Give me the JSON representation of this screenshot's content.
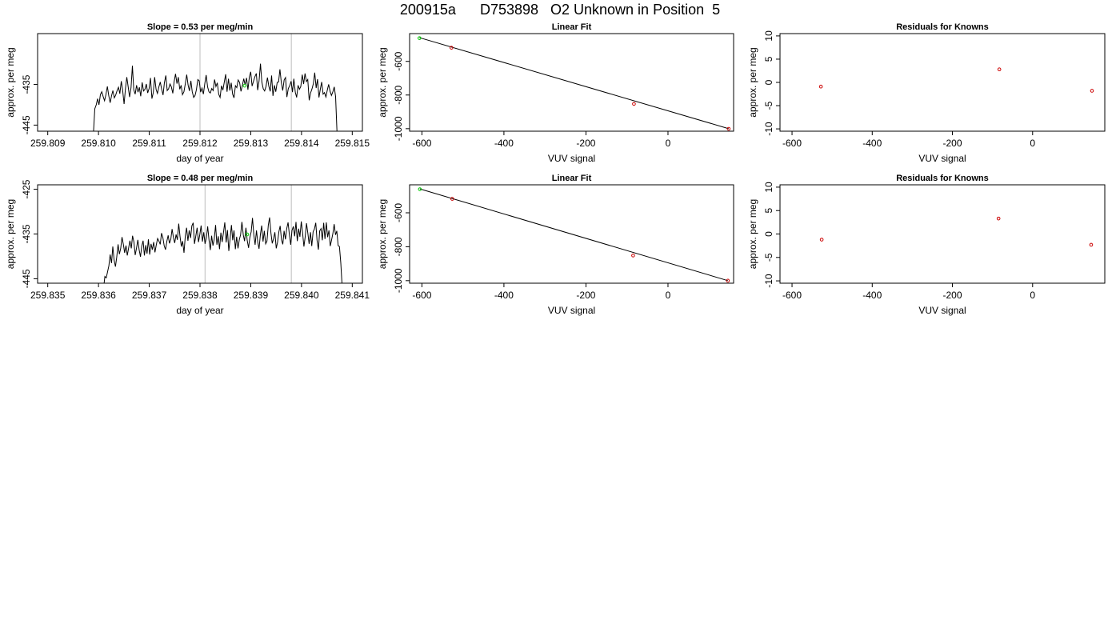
{
  "page": {
    "title": "200915a      D753898   O2 Unknown in Position  5"
  },
  "colors": {
    "trace": "#000000",
    "marker_green": "#00cc00",
    "marker_red": "#cc0000",
    "vline": "#c8c8c8"
  },
  "chart_data": [
    {
      "type": "line",
      "title": "Slope =  0.53  per meg/min",
      "xlabel": "day of year",
      "ylabel": "approx. per meg",
      "xlim": [
        259.8088,
        259.8152
      ],
      "ylim": [
        -446.5,
        -422.5
      ],
      "xticks": [
        259.809,
        259.81,
        259.811,
        259.812,
        259.813,
        259.814,
        259.815
      ],
      "xtick_labels": [
        "259.809",
        "259.810",
        "259.811",
        "259.812",
        "259.813",
        "259.814",
        "259.815"
      ],
      "yticks": [
        -445,
        -435
      ],
      "ytick_labels": [
        "-445",
        "-435"
      ],
      "vlines": [
        259.812,
        259.8138
      ],
      "series": [
        {
          "x_start": 259.8099,
          "x_end": 259.8147,
          "y": [
            -447,
            -441,
            -440,
            -438.5,
            -440,
            -437.5,
            -436.8,
            -438,
            -439,
            -437.5,
            -435.5,
            -437.7,
            -439.5,
            -437.8,
            -436.5,
            -438.3,
            -437.6,
            -436.5,
            -435.7,
            -437.3,
            -434.2,
            -436.4,
            -439.8,
            -436.1,
            -433.2,
            -435.7,
            -438.1,
            -435.8,
            -430.4,
            -436.3,
            -437.4,
            -435.2,
            -436.9,
            -435.7,
            -437.9,
            -434.5,
            -436.6,
            -436.2,
            -434.9,
            -437.1,
            -436,
            -433.4,
            -438.5,
            -437,
            -433.2,
            -436.2,
            -437.2,
            -435.6,
            -434.4,
            -436.1,
            -437.6,
            -434.6,
            -432.8,
            -436.5,
            -436.1,
            -434.9,
            -435.6,
            -437.2,
            -434.3,
            -432.4,
            -434.8,
            -433.2,
            -436.2,
            -435.2,
            -437.5,
            -436.8,
            -434.9,
            -432.6,
            -435.1,
            -436.6,
            -434.1,
            -436.8,
            -438.2,
            -437.7,
            -436.3,
            -433.8,
            -434.1,
            -436.9,
            -435.9,
            -437.4,
            -434.8,
            -432.7,
            -435.6,
            -436.8,
            -437.1,
            -436,
            -436.5,
            -433.8,
            -435.5,
            -434.6,
            -437.4,
            -438.2,
            -435.3,
            -436.4,
            -434.5,
            -432.5,
            -436.8,
            -433.6,
            -436.5,
            -434.6,
            -437.4,
            -438.3,
            -435.3,
            -435.8,
            -433.9,
            -434.5,
            -436.7,
            -435.2,
            -433.6,
            -435.1,
            -433.4,
            -436.3,
            -433.2,
            -431.9,
            -435.4,
            -434.2,
            -433.1,
            -432.3,
            -436.4,
            -434.2,
            -429.9,
            -434.4,
            -436.1,
            -436.6,
            -435.5,
            -433.3,
            -435.4,
            -436.7,
            -432.8,
            -437.8,
            -435.2,
            -436.8,
            -434.5,
            -434.4,
            -431.3,
            -434.6,
            -436.5,
            -433.9,
            -433.3,
            -438.1,
            -436,
            -435.3,
            -434.2,
            -436.9,
            -433.6,
            -436.9,
            -438.2,
            -435.2,
            -436.2,
            -435.5,
            -432.6,
            -434.9,
            -432.3,
            -434.3,
            -433.8,
            -438.9,
            -437.1,
            -436.1,
            -434.8,
            -432.1,
            -435.9,
            -433.7,
            -438.2,
            -436.2,
            -434.4,
            -437.4,
            -437,
            -438.1,
            -436.4,
            -435,
            -436.7,
            -437.7,
            -436.8,
            -435.6,
            -438,
            -447
          ]
        }
      ],
      "points": [
        {
          "x": 259.81288,
          "y": -435.3,
          "color": "green"
        }
      ]
    },
    {
      "type": "scatter",
      "title": "Linear Fit",
      "xlabel": "VUV signal",
      "ylabel": "approx. per meg",
      "xlim": [
        -630,
        160
      ],
      "ylim": [
        -1015,
        -435
      ],
      "xticks": [
        -600,
        -400,
        -200,
        0
      ],
      "xtick_labels": [
        "-600",
        "-400",
        "-200",
        "0"
      ],
      "yticks": [
        -1000,
        -800,
        -600
      ],
      "ytick_labels": [
        "-1000",
        "-800",
        "-600"
      ],
      "points": [
        {
          "x": -606,
          "y": -462,
          "color": "green"
        },
        {
          "x": -528,
          "y": -519,
          "color": "red"
        },
        {
          "x": -83,
          "y": -853,
          "color": "red"
        },
        {
          "x": 148,
          "y": -1001,
          "color": "red"
        }
      ],
      "fit_line": [
        [
          -606,
          -459
        ],
        [
          148,
          -1000
        ]
      ]
    },
    {
      "type": "scatter",
      "title": "Residuals for Knowns",
      "xlabel": "VUV signal",
      "ylabel": "approx. per meg",
      "xlim": [
        -630,
        180
      ],
      "ylim": [
        -10.5,
        10.5
      ],
      "xticks": [
        -600,
        -400,
        -200,
        0
      ],
      "xtick_labels": [
        "-600",
        "-400",
        "-200",
        "0"
      ],
      "yticks": [
        -10,
        -5,
        0,
        5,
        10
      ],
      "ytick_labels": [
        "-10",
        "-5",
        "0",
        "5",
        "10"
      ],
      "points": [
        {
          "x": -528,
          "y": -0.9,
          "color": "red"
        },
        {
          "x": -83,
          "y": 2.8,
          "color": "red"
        },
        {
          "x": 148,
          "y": -1.8,
          "color": "red"
        }
      ]
    },
    {
      "type": "line",
      "title": "Slope =  0.48  per meg/min",
      "xlabel": "day of year",
      "ylabel": "approx. per meg",
      "xlim": [
        259.8348,
        259.8412
      ],
      "ylim": [
        -446,
        -424
      ],
      "xticks": [
        259.835,
        259.836,
        259.837,
        259.838,
        259.839,
        259.84,
        259.841
      ],
      "xtick_labels": [
        "259.835",
        "259.836",
        "259.837",
        "259.838",
        "259.839",
        "259.840",
        "259.841"
      ],
      "yticks": [
        -445,
        -435,
        -425
      ],
      "ytick_labels": [
        "-445",
        "-435",
        "-425"
      ],
      "vlines": [
        259.8381,
        259.8398
      ],
      "series": [
        {
          "x_start": 259.8361,
          "x_end": 259.8408,
          "y": [
            -447,
            -444.5,
            -444.8,
            -443.5,
            -442.1,
            -439.6,
            -441.5,
            -437.8,
            -440.8,
            -442.3,
            -440.2,
            -437.3,
            -439.5,
            -438.2,
            -435.7,
            -437.3,
            -439.2,
            -437.6,
            -439.8,
            -438.1,
            -436.5,
            -438.2,
            -435.4,
            -436.8,
            -439.7,
            -438.1,
            -436.3,
            -438.5,
            -440.1,
            -437.7,
            -436.5,
            -439.8,
            -437.5,
            -439.4,
            -436.2,
            -439.6,
            -437.2,
            -438.5,
            -436.8,
            -439.1,
            -437.4,
            -436,
            -436.6,
            -437.3,
            -434.8,
            -435.8,
            -437.6,
            -438.5,
            -436.7,
            -435.3,
            -437.1,
            -436.2,
            -433.9,
            -435.8,
            -437,
            -435.1,
            -436.3,
            -432.7,
            -435.5,
            -437.8,
            -436.6,
            -439.2,
            -435.5,
            -433.6,
            -436.5,
            -434.2,
            -435.9,
            -433.2,
            -432.5,
            -437.2,
            -435.4,
            -433.6,
            -436.8,
            -435.2,
            -433.1,
            -436.7,
            -434.6,
            -437.2,
            -435.8,
            -433.3,
            -436.4,
            -438.6,
            -435.4,
            -437.6,
            -436.1,
            -433,
            -437.4,
            -435.5,
            -438.4,
            -434.7,
            -436.8,
            -434.6,
            -432.4,
            -436.9,
            -434.1,
            -438.8,
            -436.1,
            -433,
            -436.4,
            -434.2,
            -438.4,
            -435.6,
            -438.2,
            -436.3,
            -435.1,
            -432.3,
            -435.2,
            -436.6,
            -433.6,
            -436.4,
            -438.1,
            -435.8,
            -434.5,
            -431.4,
            -435.2,
            -437.4,
            -434.2,
            -436.8,
            -438.3,
            -435.1,
            -433.1,
            -436.7,
            -434.3,
            -437.2,
            -436.6,
            -433,
            -431.3,
            -434.8,
            -437.1,
            -436,
            -434.6,
            -438.2,
            -436.9,
            -434.5,
            -433.2,
            -436.3,
            -437.3,
            -434.3,
            -436.2,
            -433.8,
            -432.4,
            -435.1,
            -437.4,
            -434.2,
            -433.3,
            -435.5,
            -432.3,
            -436.6,
            -433.8,
            -435.6,
            -432.2,
            -434.7,
            -437.8,
            -435.6,
            -432.6,
            -434.8,
            -437.2,
            -434.6,
            -437.7,
            -434.5,
            -433.9,
            -432.5,
            -436.4,
            -438.5,
            -434.3,
            -433.8,
            -436.4,
            -432.5,
            -436.1,
            -432.4,
            -435.7,
            -434.2,
            -437.7,
            -436.4,
            -434.9,
            -432.8,
            -435.2,
            -434.3,
            -437.6,
            -437.8,
            -441.5,
            -446.5
          ]
        }
      ],
      "points": [
        {
          "x": 259.83893,
          "y": -435.1,
          "color": "green"
        }
      ]
    },
    {
      "type": "scatter",
      "title": "Linear Fit",
      "xlabel": "VUV signal",
      "ylabel": "approx. per meg",
      "xlim": [
        -630,
        160
      ],
      "ylim": [
        -1015,
        -435
      ],
      "xticks": [
        -600,
        -400,
        -200,
        0
      ],
      "xtick_labels": [
        "-600",
        "-400",
        "-200",
        "0"
      ],
      "yticks": [
        -1000,
        -800,
        -600
      ],
      "ytick_labels": [
        "-1000",
        "-800",
        "-600"
      ],
      "points": [
        {
          "x": -605,
          "y": -461,
          "color": "green"
        },
        {
          "x": -526,
          "y": -518,
          "color": "red"
        },
        {
          "x": -85,
          "y": -852,
          "color": "red"
        },
        {
          "x": 146,
          "y": -1000,
          "color": "red"
        }
      ],
      "fit_line": [
        [
          -605,
          -459
        ],
        [
          146,
          -1000
        ]
      ]
    },
    {
      "type": "scatter",
      "title": "Residuals for Knowns",
      "xlabel": "VUV signal",
      "ylabel": "approx. per meg",
      "xlim": [
        -630,
        180
      ],
      "ylim": [
        -10.5,
        10.5
      ],
      "xticks": [
        -600,
        -400,
        -200,
        0
      ],
      "xtick_labels": [
        "-600",
        "-400",
        "-200",
        "0"
      ],
      "yticks": [
        -10,
        -5,
        0,
        5,
        10
      ],
      "ytick_labels": [
        "-10",
        "-5",
        "0",
        "5",
        "10"
      ],
      "points": [
        {
          "x": -526,
          "y": -1.2,
          "color": "red"
        },
        {
          "x": -85,
          "y": 3.3,
          "color": "red"
        },
        {
          "x": 146,
          "y": -2.3,
          "color": "red"
        }
      ]
    }
  ]
}
